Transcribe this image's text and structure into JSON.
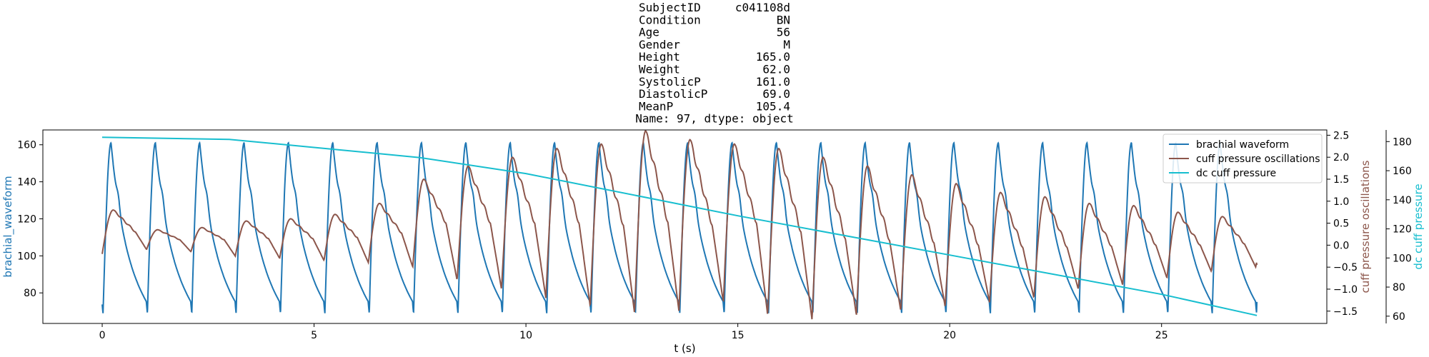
{
  "chart_data": {
    "type": "line",
    "title_lines": [
      "SubjectID     c041108d",
      "Condition           BN",
      "Age                 56",
      "Gender               M",
      "Height           165.0",
      "Weight            62.0",
      "SystolicP        161.0",
      "DiastolicP        69.0",
      "MeanP            105.4",
      "Name: 97, dtype: object"
    ],
    "xlabel": "t (s)",
    "xlim": [
      -1.4,
      28.9
    ],
    "xticks": [
      0,
      5,
      10,
      15,
      20,
      25
    ],
    "y_left": {
      "label": "brachial_waveform",
      "range": [
        63.5,
        168
      ],
      "ticks": [
        80,
        100,
        120,
        140,
        160
      ],
      "color": "#1f77b4"
    },
    "y_right1": {
      "label": "cuff pressure oscillations",
      "range": [
        -1.78,
        2.62
      ],
      "ticks": [
        -1.5,
        -1.0,
        -0.5,
        0.0,
        0.5,
        1.0,
        1.5,
        2.0,
        2.5
      ],
      "tick_labels": [
        "−1.5",
        "−1.0",
        "−0.5",
        "0.0",
        "0.5",
        "1.0",
        "1.5",
        "2.0",
        "2.5"
      ],
      "color": "#8c564b"
    },
    "y_right2": {
      "label": "dc cuff pressure",
      "range": [
        55,
        188
      ],
      "ticks": [
        60,
        80,
        100,
        120,
        140,
        160,
        180
      ],
      "color": "#17becf"
    },
    "legend": {
      "placement": "upper-right",
      "entries": [
        {
          "label": "brachial waveform",
          "color": "#1f77b4"
        },
        {
          "label": "cuff pressure oscillations",
          "color": "#8c564b"
        },
        {
          "label": "dc cuff pressure",
          "color": "#17becf"
        }
      ]
    },
    "series": [
      {
        "name": "brachial waveform",
        "axis": "left",
        "color": "#1f77b4",
        "beat_start": 0.02,
        "beat_period": 1.047,
        "beat_count": 26,
        "t_end": 27.25,
        "systolic": 161,
        "diastolic": 69
      },
      {
        "name": "cuff pressure oscillations",
        "axis": "right1",
        "color": "#8c564b",
        "t_start": 0.0,
        "t_end": 27.25,
        "beat_period": 1.047,
        "peaks": [
          0.8,
          0.35,
          0.4,
          0.55,
          0.6,
          0.7,
          0.95,
          1.5,
          1.8,
          2.0,
          2.2,
          2.3,
          2.6,
          2.4,
          2.3,
          2.2,
          2.0,
          1.8,
          1.6,
          1.4,
          1.2,
          1.1,
          0.95,
          0.9,
          0.75,
          0.65,
          0.45
        ],
        "troughs": [
          -0.2,
          -0.1,
          -0.15,
          -0.25,
          -0.3,
          -0.35,
          -0.4,
          -0.5,
          -0.8,
          -1.0,
          -1.2,
          -1.4,
          -1.55,
          -1.5,
          -1.3,
          -1.6,
          -1.7,
          -1.6,
          -1.5,
          -1.4,
          -1.3,
          -1.2,
          -1.0,
          -0.9,
          -0.75,
          -0.6,
          -0.5
        ],
        "end_value": -0.45
      },
      {
        "name": "dc cuff pressure",
        "axis": "right2",
        "color": "#17becf",
        "points": [
          [
            0.0,
            183
          ],
          [
            3.0,
            181.5
          ],
          [
            5.0,
            176
          ],
          [
            7.5,
            169
          ],
          [
            10.0,
            158
          ],
          [
            15.0,
            129
          ],
          [
            20.0,
            102
          ],
          [
            25.0,
            75
          ],
          [
            27.25,
            60.5
          ]
        ]
      }
    ]
  }
}
